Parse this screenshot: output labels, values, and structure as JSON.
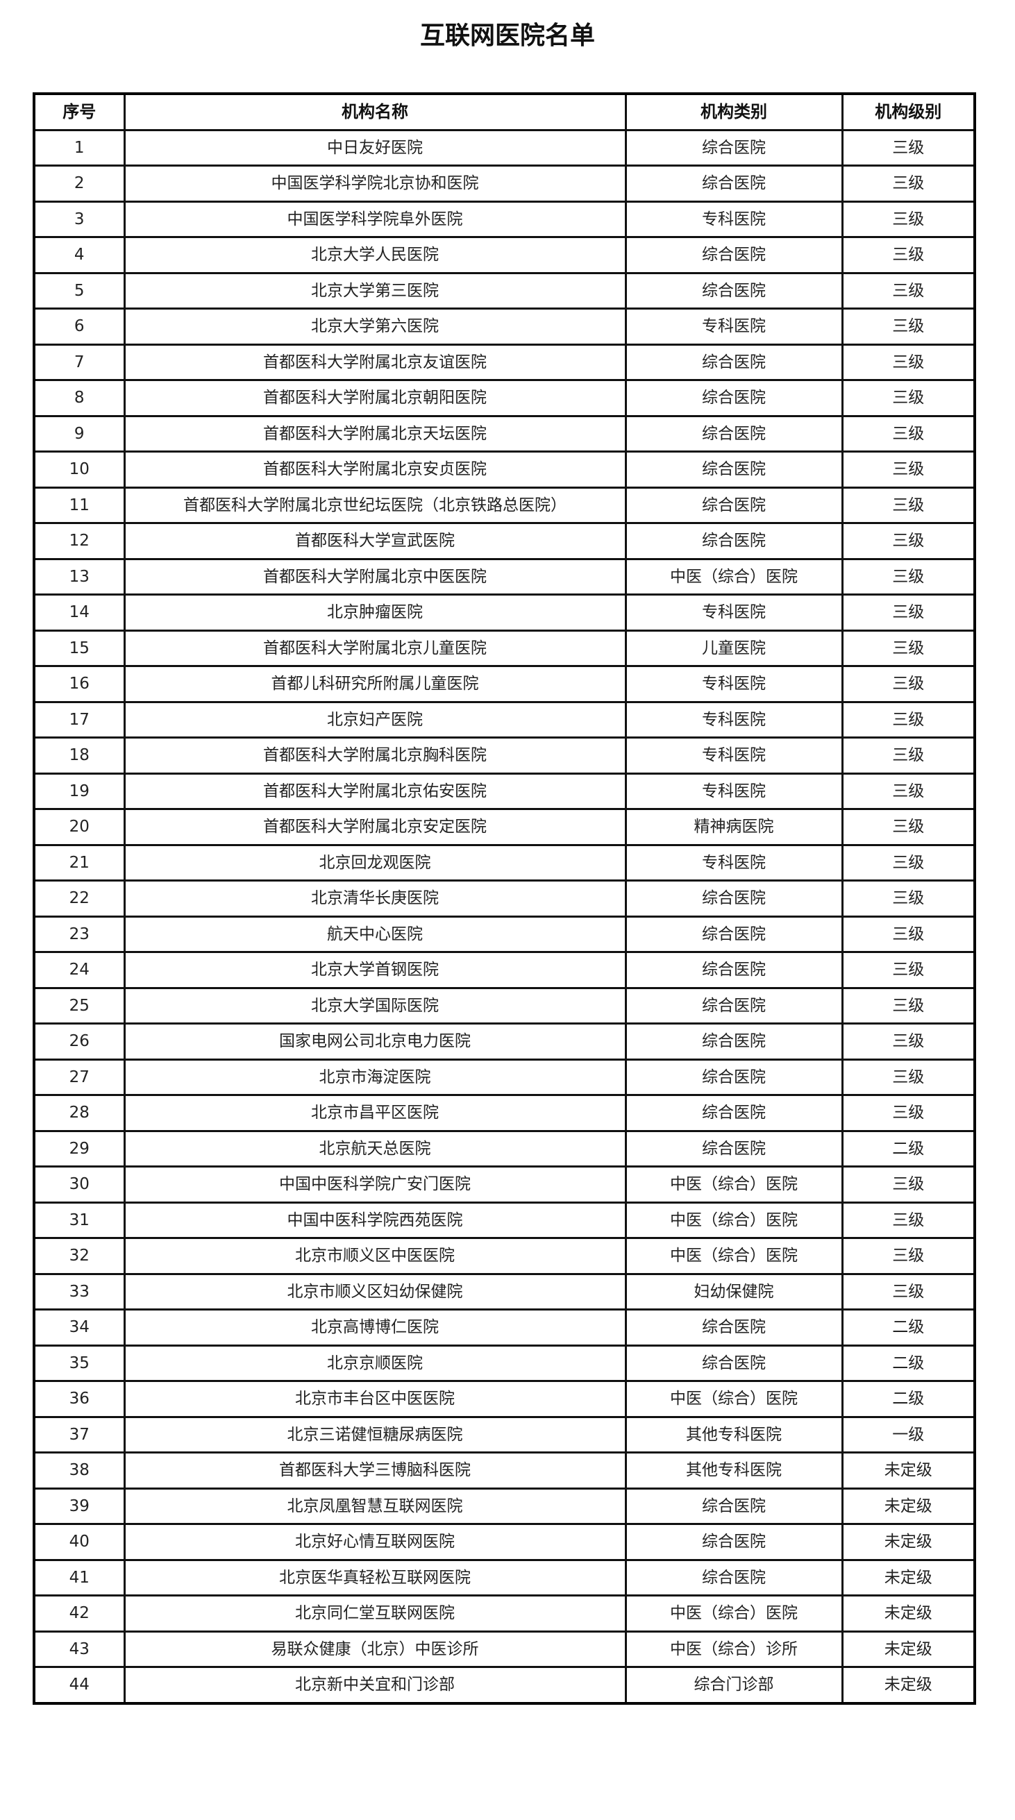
{
  "title": "互联网医院名单",
  "table": {
    "headers": [
      "序号",
      "机构名称",
      "机构类别",
      "机构级别"
    ],
    "rows": [
      [
        "1",
        "中日友好医院",
        "综合医院",
        "三级"
      ],
      [
        "2",
        "中国医学科学院北京协和医院",
        "综合医院",
        "三级"
      ],
      [
        "3",
        "中国医学科学院阜外医院",
        "专科医院",
        "三级"
      ],
      [
        "4",
        "北京大学人民医院",
        "综合医院",
        "三级"
      ],
      [
        "5",
        "北京大学第三医院",
        "综合医院",
        "三级"
      ],
      [
        "6",
        "北京大学第六医院",
        "专科医院",
        "三级"
      ],
      [
        "7",
        "首都医科大学附属北京友谊医院",
        "综合医院",
        "三级"
      ],
      [
        "8",
        "首都医科大学附属北京朝阳医院",
        "综合医院",
        "三级"
      ],
      [
        "9",
        "首都医科大学附属北京天坛医院",
        "综合医院",
        "三级"
      ],
      [
        "10",
        "首都医科大学附属北京安贞医院",
        "综合医院",
        "三级"
      ],
      [
        "11",
        "首都医科大学附属北京世纪坛医院（北京铁路总医院）",
        "综合医院",
        "三级"
      ],
      [
        "12",
        "首都医科大学宣武医院",
        "综合医院",
        "三级"
      ],
      [
        "13",
        "首都医科大学附属北京中医医院",
        "中医（综合）医院",
        "三级"
      ],
      [
        "14",
        "北京肿瘤医院",
        "专科医院",
        "三级"
      ],
      [
        "15",
        "首都医科大学附属北京儿童医院",
        "儿童医院",
        "三级"
      ],
      [
        "16",
        "首都儿科研究所附属儿童医院",
        "专科医院",
        "三级"
      ],
      [
        "17",
        "北京妇产医院",
        "专科医院",
        "三级"
      ],
      [
        "18",
        "首都医科大学附属北京胸科医院",
        "专科医院",
        "三级"
      ],
      [
        "19",
        "首都医科大学附属北京佑安医院",
        "专科医院",
        "三级"
      ],
      [
        "20",
        "首都医科大学附属北京安定医院",
        "精神病医院",
        "三级"
      ],
      [
        "21",
        "北京回龙观医院",
        "专科医院",
        "三级"
      ],
      [
        "22",
        "北京清华长庚医院",
        "综合医院",
        "三级"
      ],
      [
        "23",
        "航天中心医院",
        "综合医院",
        "三级"
      ],
      [
        "24",
        "北京大学首钢医院",
        "综合医院",
        "三级"
      ],
      [
        "25",
        "北京大学国际医院",
        "综合医院",
        "三级"
      ],
      [
        "26",
        "国家电网公司北京电力医院",
        "综合医院",
        "三级"
      ],
      [
        "27",
        "北京市海淀医院",
        "综合医院",
        "三级"
      ],
      [
        "28",
        "北京市昌平区医院",
        "综合医院",
        "三级"
      ],
      [
        "29",
        "北京航天总医院",
        "综合医院",
        "二级"
      ],
      [
        "30",
        "中国中医科学院广安门医院",
        "中医（综合）医院",
        "三级"
      ],
      [
        "31",
        "中国中医科学院西苑医院",
        "中医（综合）医院",
        "三级"
      ],
      [
        "32",
        "北京市顺义区中医医院",
        "中医（综合）医院",
        "三级"
      ],
      [
        "33",
        "北京市顺义区妇幼保健院",
        "妇幼保健院",
        "三级"
      ],
      [
        "34",
        "北京高博博仁医院",
        "综合医院",
        "二级"
      ],
      [
        "35",
        "北京京顺医院",
        "综合医院",
        "二级"
      ],
      [
        "36",
        "北京市丰台区中医医院",
        "中医（综合）医院",
        "二级"
      ],
      [
        "37",
        "北京三诺健恒糖尿病医院",
        "其他专科医院",
        "一级"
      ],
      [
        "38",
        "首都医科大学三博脑科医院",
        "其他专科医院",
        "未定级"
      ],
      [
        "39",
        "北京凤凰智慧互联网医院",
        "综合医院",
        "未定级"
      ],
      [
        "40",
        "北京好心情互联网医院",
        "综合医院",
        "未定级"
      ],
      [
        "41",
        "北京医华真轻松互联网医院",
        "综合医院",
        "未定级"
      ],
      [
        "42",
        "北京同仁堂互联网医院",
        "中医（综合）医院",
        "未定级"
      ],
      [
        "43",
        "易联众健康（北京）中医诊所",
        "中医（综合）诊所",
        "未定级"
      ],
      [
        "44",
        "北京新中关宜和门诊部",
        "综合门诊部",
        "未定级"
      ]
    ]
  }
}
